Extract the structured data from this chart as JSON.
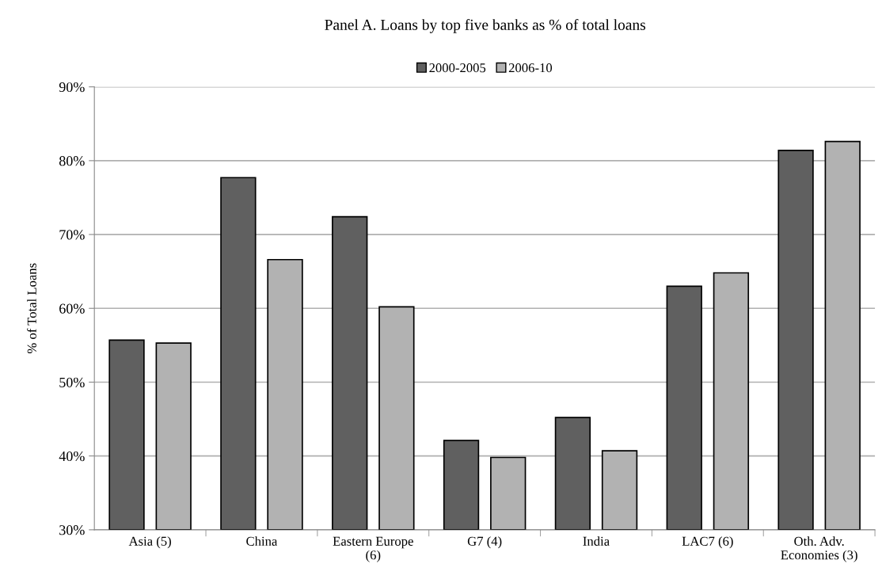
{
  "chart_data": {
    "type": "bar",
    "title": "Panel A. Loans by top five banks as % of total loans",
    "ylabel": "% of Total Loans",
    "categories": [
      "Asia (5)",
      "China",
      "Eastern Europe\n(6)",
      "G7 (4)",
      "India",
      "LAC7 (6)",
      "Oth. Adv.\nEconomies (3)"
    ],
    "series": [
      {
        "name": "2000-2005",
        "color": "#606060",
        "values": [
          55.7,
          77.7,
          72.4,
          42.1,
          45.2,
          63.0,
          81.4
        ]
      },
      {
        "name": "2006-10",
        "color": "#b2b2b2",
        "values": [
          55.3,
          66.6,
          60.2,
          39.8,
          40.7,
          64.8,
          82.6
        ]
      }
    ],
    "ylim": [
      30,
      90
    ],
    "yticks": [
      {
        "value": 30,
        "label": "30%"
      },
      {
        "value": 40,
        "label": "40%"
      },
      {
        "value": 50,
        "label": "50%"
      },
      {
        "value": 60,
        "label": "60%"
      },
      {
        "value": 70,
        "label": "70%"
      },
      {
        "value": 80,
        "label": "80%"
      },
      {
        "value": 90,
        "label": "90%"
      }
    ],
    "grid": "y",
    "legend": "top"
  }
}
